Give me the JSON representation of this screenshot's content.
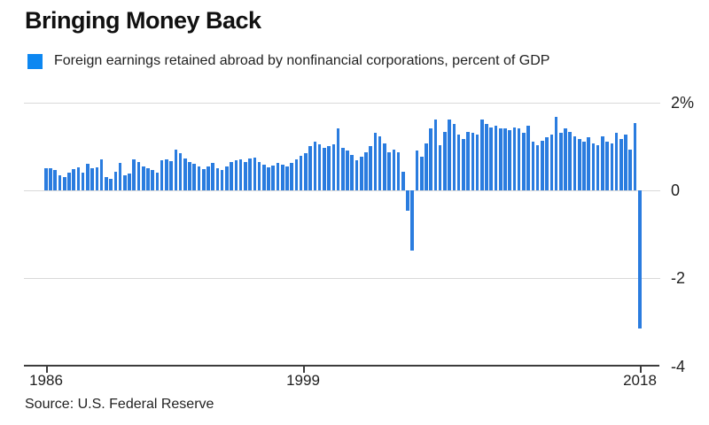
{
  "title": "Bringing Money Back",
  "legend": {
    "label": "Foreign earnings retained abroad by nonfinancial corporations, percent of GDP",
    "color": "#0d87f1"
  },
  "source": "Source: U.S. Federal Reserve",
  "chart_data": {
    "type": "bar",
    "title": "Bringing Money Back",
    "series_name": "Foreign earnings retained abroad by nonfinancial corporations, percent of GDP",
    "frequency": "quarterly",
    "x_first": "1986 Q1",
    "x_last": "2018 Q1",
    "x_tick_labels": [
      "1986",
      "1999",
      "2018"
    ],
    "y_tick_labels": [
      "2%",
      "0",
      "-2",
      "-4"
    ],
    "y_ticks": [
      2,
      0,
      -2,
      -4
    ],
    "ylim": [
      -4,
      2
    ],
    "grid": true,
    "legend_position": "top-left",
    "y_axis_side": "right",
    "bar_color": "#2a7cdf",
    "values": [
      0.5,
      0.5,
      0.47,
      0.35,
      0.3,
      0.4,
      0.49,
      0.53,
      0.41,
      0.6,
      0.5,
      0.53,
      0.7,
      0.3,
      0.27,
      0.43,
      0.63,
      0.35,
      0.38,
      0.7,
      0.65,
      0.55,
      0.5,
      0.47,
      0.41,
      0.68,
      0.7,
      0.67,
      0.93,
      0.85,
      0.72,
      0.65,
      0.6,
      0.55,
      0.48,
      0.55,
      0.62,
      0.5,
      0.47,
      0.55,
      0.65,
      0.68,
      0.7,
      0.65,
      0.72,
      0.75,
      0.65,
      0.58,
      0.52,
      0.57,
      0.62,
      0.58,
      0.55,
      0.62,
      0.7,
      0.78,
      0.85,
      1.0,
      1.1,
      1.05,
      0.97,
      1.0,
      1.05,
      1.4,
      0.97,
      0.9,
      0.8,
      0.68,
      0.77,
      0.87,
      1.0,
      1.3,
      1.23,
      1.07,
      0.87,
      0.93,
      0.87,
      0.43,
      -0.46,
      -1.37,
      0.9,
      0.77,
      1.07,
      1.4,
      1.6,
      1.03,
      1.33,
      1.6,
      1.5,
      1.27,
      1.17,
      1.33,
      1.3,
      1.27,
      1.6,
      1.5,
      1.43,
      1.47,
      1.4,
      1.4,
      1.37,
      1.43,
      1.4,
      1.3,
      1.47,
      1.1,
      1.03,
      1.13,
      1.2,
      1.27,
      1.67,
      1.3,
      1.4,
      1.33,
      1.23,
      1.17,
      1.1,
      1.2,
      1.07,
      1.03,
      1.23,
      1.1,
      1.07,
      1.3,
      1.17,
      1.27,
      0.93,
      1.53,
      -3.13
    ]
  }
}
